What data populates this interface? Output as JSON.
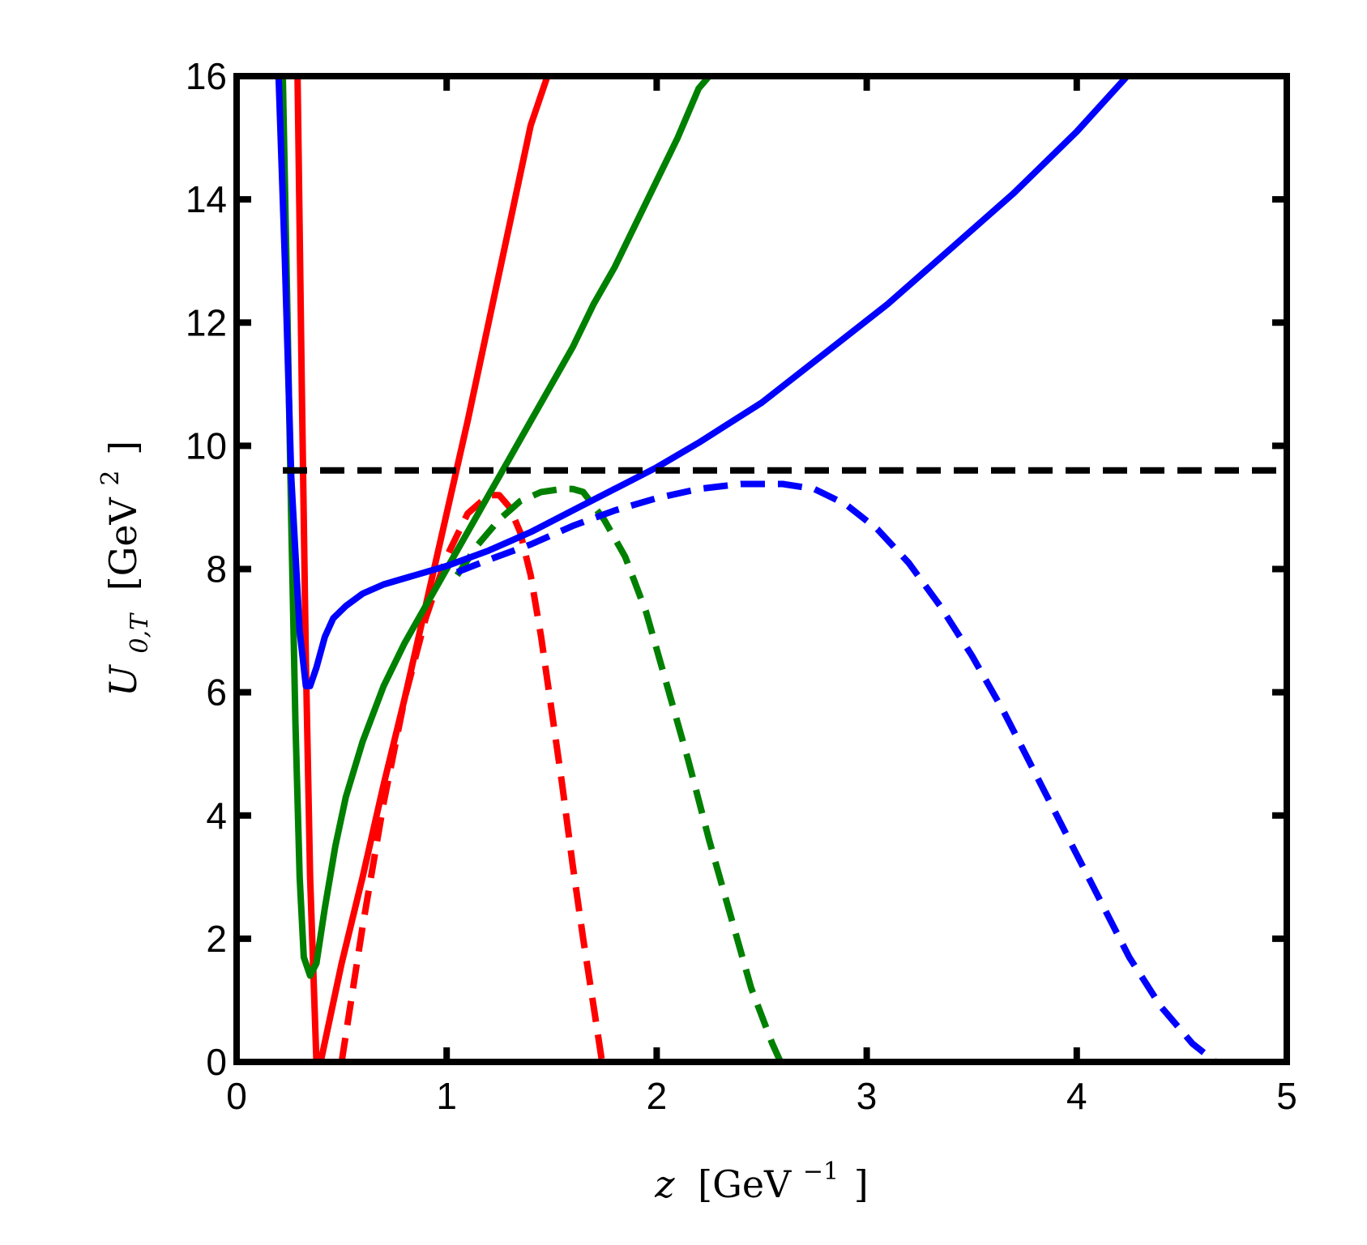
{
  "chart_data": {
    "type": "line",
    "title": "",
    "xlabel": {
      "var": "z",
      "unit_open": "[GeV",
      "unit_exp": "−1",
      "unit_close": "]"
    },
    "ylabel": {
      "var": "U",
      "sub": "0,T",
      "unit_open": "[GeV",
      "unit_exp": "2",
      "unit_close": "]"
    },
    "xlim": [
      0,
      5
    ],
    "ylim": [
      0,
      16
    ],
    "x_ticks": [
      0,
      1,
      2,
      3,
      4,
      5
    ],
    "x_tick_labels": [
      "0",
      "1",
      "2",
      "3",
      "4",
      "5"
    ],
    "y_ticks": [
      0,
      2,
      4,
      6,
      8,
      10,
      12,
      14,
      16
    ],
    "y_tick_labels": [
      "0",
      "2",
      "4",
      "6",
      "8",
      "10",
      "12",
      "14",
      "16"
    ],
    "grid": false,
    "legend": "none",
    "series": [
      {
        "color": "#ff0000",
        "style": "solid",
        "x": [
          0.29,
          0.31,
          0.33,
          0.35,
          0.37,
          0.38,
          0.4,
          0.5,
          0.6,
          0.7,
          0.8,
          0.9,
          1.0,
          1.1,
          1.2,
          1.3,
          1.4,
          1.48
        ],
        "y": [
          16.0,
          11.0,
          6.5,
          3.0,
          1.0,
          0.0,
          0.0,
          1.6,
          3.0,
          4.5,
          5.9,
          7.4,
          8.9,
          10.4,
          12.0,
          13.6,
          15.2,
          16.0
        ]
      },
      {
        "color": "#ff0000",
        "style": "dashed",
        "x": [
          0.5,
          0.6,
          0.7,
          0.8,
          0.9,
          1.0,
          1.1,
          1.2,
          1.25,
          1.3,
          1.35,
          1.4,
          1.45,
          1.5,
          1.55,
          1.6,
          1.65,
          1.7,
          1.74
        ],
        "y": [
          0.0,
          2.2,
          4.2,
          5.9,
          7.2,
          8.2,
          8.9,
          9.2,
          9.2,
          9.0,
          8.6,
          7.9,
          6.9,
          5.7,
          4.5,
          3.2,
          2.0,
          0.9,
          0.0
        ]
      },
      {
        "color": "#008000",
        "style": "solid",
        "x": [
          0.22,
          0.24,
          0.26,
          0.28,
          0.3,
          0.32,
          0.35,
          0.38,
          0.42,
          0.47,
          0.52,
          0.6,
          0.7,
          0.8,
          0.9,
          1.0,
          1.1,
          1.2,
          1.3,
          1.4,
          1.5,
          1.6,
          1.7,
          1.8,
          1.9,
          2.0,
          2.1,
          2.2,
          2.25
        ],
        "y": [
          16.0,
          12.5,
          8.8,
          5.5,
          3.0,
          1.7,
          1.4,
          1.6,
          2.5,
          3.5,
          4.3,
          5.2,
          6.1,
          6.8,
          7.4,
          8.0,
          8.6,
          9.2,
          9.8,
          10.4,
          11.0,
          11.6,
          12.3,
          12.9,
          13.6,
          14.3,
          15.0,
          15.8,
          16.0
        ]
      },
      {
        "color": "#008000",
        "style": "dashed",
        "x": [
          1.05,
          1.15,
          1.25,
          1.35,
          1.45,
          1.55,
          1.6,
          1.65,
          1.75,
          1.85,
          1.95,
          2.05,
          2.15,
          2.25,
          2.35,
          2.45,
          2.55,
          2.59
        ],
        "y": [
          7.9,
          8.4,
          8.8,
          9.1,
          9.25,
          9.3,
          9.3,
          9.25,
          8.8,
          8.2,
          7.3,
          6.1,
          4.9,
          3.6,
          2.4,
          1.2,
          0.3,
          0.0
        ]
      },
      {
        "color": "#0000ff",
        "style": "solid",
        "x": [
          0.2,
          0.23,
          0.26,
          0.3,
          0.33,
          0.35,
          0.38,
          0.42,
          0.46,
          0.52,
          0.6,
          0.7,
          0.8,
          0.9,
          1.0,
          1.2,
          1.4,
          1.6,
          1.8,
          2.0,
          2.2,
          2.5,
          2.8,
          3.1,
          3.4,
          3.7,
          4.0,
          4.24
        ],
        "y": [
          16.0,
          13.0,
          9.5,
          7.0,
          6.1,
          6.1,
          6.4,
          6.9,
          7.2,
          7.4,
          7.6,
          7.75,
          7.85,
          7.95,
          8.05,
          8.3,
          8.6,
          8.95,
          9.3,
          9.65,
          10.05,
          10.7,
          11.5,
          12.3,
          13.2,
          14.1,
          15.1,
          16.0
        ]
      },
      {
        "color": "#0000ff",
        "style": "dashed",
        "x": [
          1.05,
          1.2,
          1.4,
          1.6,
          1.8,
          2.0,
          2.2,
          2.4,
          2.6,
          2.75,
          2.9,
          3.05,
          3.2,
          3.35,
          3.5,
          3.65,
          3.8,
          3.95,
          4.1,
          4.25,
          4.4,
          4.55,
          4.66
        ],
        "y": [
          7.95,
          8.15,
          8.4,
          8.7,
          8.95,
          9.15,
          9.3,
          9.38,
          9.38,
          9.3,
          9.05,
          8.65,
          8.1,
          7.4,
          6.6,
          5.7,
          4.7,
          3.7,
          2.7,
          1.7,
          0.9,
          0.3,
          0.0
        ]
      },
      {
        "color": "#000000",
        "style": "dashed",
        "x": [
          0.22,
          5.0
        ],
        "y": [
          9.6,
          9.6
        ]
      }
    ]
  }
}
